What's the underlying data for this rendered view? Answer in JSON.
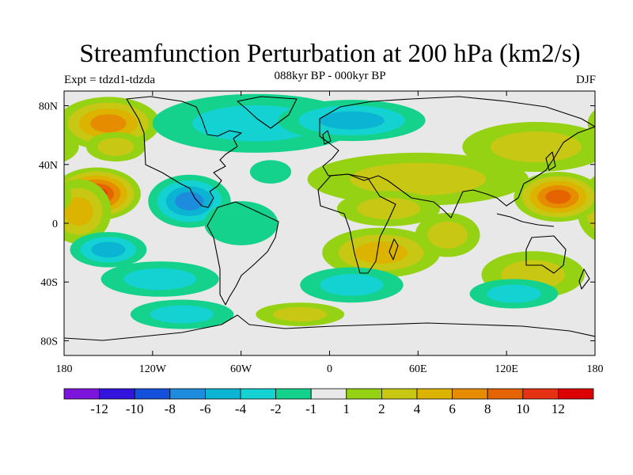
{
  "figure": {
    "title": "Streamfunction Perturbation at 200 hPa (km2/s)",
    "subtitle": "088kyr BP - 000kyr BP",
    "left_label": "Expt = tdzd1-tdzda",
    "right_label": "DJF"
  },
  "map": {
    "projection": "cylindrical-equidistant",
    "lon_range": [
      -180,
      180
    ],
    "lat_range": [
      -90,
      90
    ],
    "lat_ticks": [
      {
        "value": 80,
        "label": "80N"
      },
      {
        "value": 40,
        "label": "40N"
      },
      {
        "value": 0,
        "label": "0"
      },
      {
        "value": -40,
        "label": "40S"
      },
      {
        "value": -80,
        "label": "80S"
      }
    ],
    "lon_ticks": [
      {
        "value": -180,
        "label": "180"
      },
      {
        "value": -120,
        "label": "120W"
      },
      {
        "value": -60,
        "label": "60W"
      },
      {
        "value": 0,
        "label": "0"
      },
      {
        "value": 60,
        "label": "60E"
      },
      {
        "value": 120,
        "label": "120E"
      },
      {
        "value": 180,
        "label": "180"
      }
    ],
    "background_color": "#e8e8e8",
    "coastline_color": "#000000"
  },
  "colorbar": {
    "colors": [
      "#7d14dc",
      "#3214dc",
      "#1450dc",
      "#1e8cdc",
      "#0ab4d2",
      "#14d2d2",
      "#14d28c",
      "#e8e8e8",
      "#96d214",
      "#c8c814",
      "#dcb400",
      "#e68c00",
      "#e66400",
      "#e63214",
      "#dc0000"
    ],
    "labels": [
      "-12",
      "-10",
      "-8",
      "-6",
      "-4",
      "-2",
      "-1",
      "1",
      "2",
      "4",
      "6",
      "8",
      "10",
      "12"
    ]
  },
  "chart_data": {
    "type": "filled-contour-map",
    "title": "Streamfunction Perturbation at 200 hPa (km2/s)",
    "variable_units": "km2/s",
    "contour_levels": [
      -12,
      -10,
      -8,
      -6,
      -4,
      -2,
      -1,
      1,
      2,
      4,
      6,
      8,
      10,
      12
    ],
    "blobs": [
      {
        "lon": -158,
        "lat": 20,
        "rlon": 30,
        "rlat": 18,
        "value": 11.5
      },
      {
        "lon": -170,
        "lat": 8,
        "rlon": 22,
        "rlat": 22,
        "value": 5
      },
      {
        "lon": -150,
        "lat": 68,
        "rlon": 35,
        "rlat": 18,
        "value": 6.5
      },
      {
        "lon": -145,
        "lat": 52,
        "rlon": 20,
        "rlat": 10,
        "value": 3
      },
      {
        "lon": -150,
        "lat": -18,
        "rlon": 26,
        "rlat": 12,
        "value": -6
      },
      {
        "lon": -95,
        "lat": 15,
        "rlon": 28,
        "rlat": 18,
        "value": -7.5
      },
      {
        "lon": -115,
        "lat": -38,
        "rlon": 40,
        "rlat": 12,
        "value": -2.5
      },
      {
        "lon": -50,
        "lat": 68,
        "rlon": 70,
        "rlat": 20,
        "value": -3
      },
      {
        "lon": 15,
        "lat": 70,
        "rlon": 50,
        "rlat": 14,
        "value": -6
      },
      {
        "lon": -40,
        "lat": 35,
        "rlon": 14,
        "rlat": 8,
        "value": -2
      },
      {
        "lon": 60,
        "lat": 30,
        "rlon": 75,
        "rlat": 18,
        "value": 3
      },
      {
        "lon": 40,
        "lat": 10,
        "rlon": 35,
        "rlat": 12,
        "value": 2
      },
      {
        "lon": 35,
        "lat": -20,
        "rlon": 40,
        "rlat": 17,
        "value": 4
      },
      {
        "lon": 80,
        "lat": -8,
        "rlon": 22,
        "rlat": 15,
        "value": 3
      },
      {
        "lon": 15,
        "lat": -42,
        "rlon": 35,
        "rlat": 12,
        "value": -3
      },
      {
        "lon": 138,
        "lat": -35,
        "rlon": 35,
        "rlat": 16,
        "value": 3
      },
      {
        "lon": 125,
        "lat": -48,
        "rlon": 30,
        "rlat": 10,
        "value": -3
      },
      {
        "lon": 155,
        "lat": 18,
        "rlon": 30,
        "rlat": 17,
        "value": 8
      },
      {
        "lon": 140,
        "lat": 52,
        "rlon": 50,
        "rlat": 17,
        "value": 2
      },
      {
        "lon": -100,
        "lat": -62,
        "rlon": 35,
        "rlat": 10,
        "value": -2.5
      },
      {
        "lon": -60,
        "lat": 0,
        "rlon": 25,
        "rlat": 15,
        "value": -2
      },
      {
        "lon": -20,
        "lat": -62,
        "rlon": 30,
        "rlat": 8,
        "value": 2
      }
    ]
  }
}
